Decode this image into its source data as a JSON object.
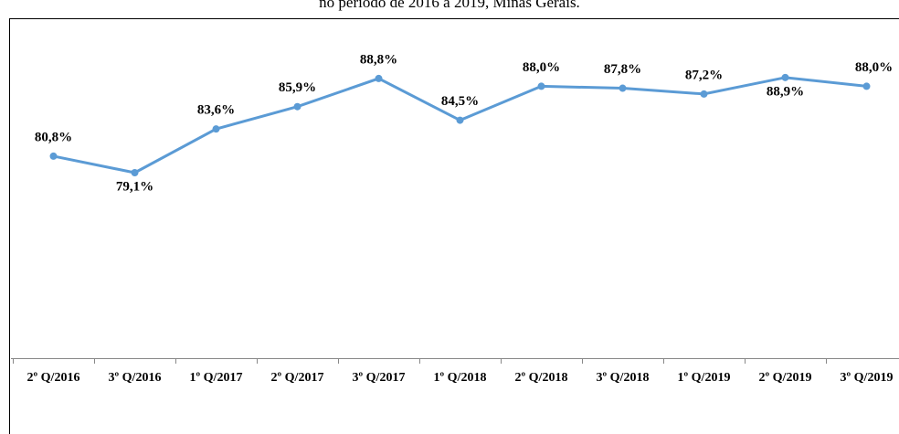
{
  "chart_data": {
    "type": "line",
    "title": "no período de 2016 a 2019, Minas Gerais.",
    "categories": [
      "2º Q/2016",
      "3º Q/2016",
      "1º Q/2017",
      "2º Q/2017",
      "3º Q/2017",
      "1º Q/2018",
      "2º Q/2018",
      "3º Q/2018",
      "1º Q/2019",
      "2º Q/2019",
      "3º Q/2019"
    ],
    "values": [
      80.8,
      79.1,
      83.6,
      85.9,
      88.8,
      84.5,
      88.0,
      87.8,
      87.2,
      88.9,
      88.0
    ],
    "value_labels": [
      "80,8%",
      "79,1%",
      "83,6%",
      "85,9%",
      "88,8%",
      "84,5%",
      "88,0%",
      "87,8%",
      "87,2%",
      "88,9%",
      "88,0%"
    ],
    "color": "#5b9bd5",
    "ylim": [
      60,
      95
    ]
  }
}
